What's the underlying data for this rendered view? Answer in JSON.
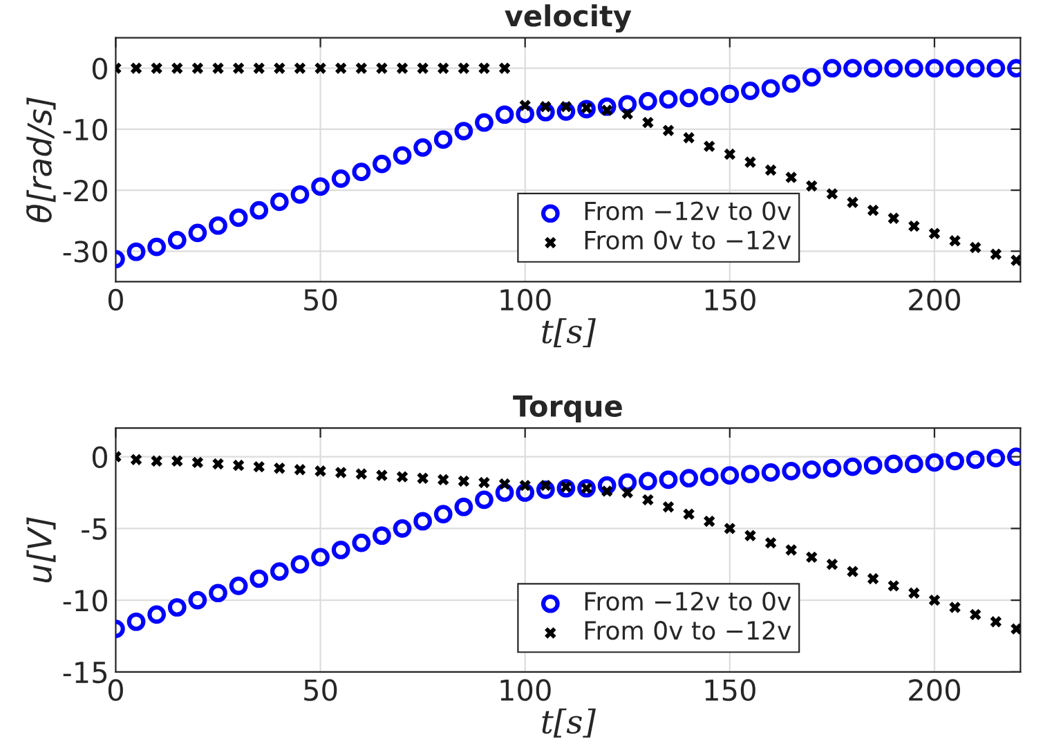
{
  "chart_data": [
    {
      "type": "scatter",
      "title": "velocity",
      "xlabel": "t[s]",
      "ylabel": "θ̇[rad/s]",
      "xlim": [
        0,
        221
      ],
      "ylim": [
        -35,
        5
      ],
      "xticks": [
        0,
        50,
        100,
        150,
        200
      ],
      "yticks": [
        -30,
        -20,
        -10,
        0
      ],
      "grid": true,
      "legend": "bottom",
      "x": [
        0,
        5,
        10,
        15,
        20,
        25,
        30,
        35,
        40,
        45,
        50,
        55,
        60,
        65,
        70,
        75,
        80,
        85,
        90,
        95,
        100,
        105,
        110,
        115,
        120,
        125,
        130,
        135,
        140,
        145,
        150,
        155,
        160,
        165,
        170,
        175,
        180,
        185,
        190,
        195,
        200,
        205,
        210,
        215,
        220
      ],
      "series": [
        {
          "name": "From −12v to 0v",
          "color": "#0000ff",
          "marker": "circle",
          "values": [
            -31.3,
            -30.1,
            -29.3,
            -28.2,
            -27.0,
            -25.8,
            -24.5,
            -23.3,
            -21.9,
            -20.7,
            -19.4,
            -18.1,
            -17.0,
            -15.7,
            -14.3,
            -13.0,
            -11.7,
            -10.3,
            -8.9,
            -7.6,
            -7.5,
            -7.2,
            -7.1,
            -6.7,
            -6.3,
            -5.9,
            -5.4,
            -5.1,
            -4.9,
            -4.6,
            -4.2,
            -3.7,
            -3.3,
            -2.5,
            -1.5,
            0,
            0,
            0,
            0,
            0,
            0,
            0,
            0,
            0,
            0
          ]
        },
        {
          "name": "From 0v to −12v",
          "color": "#000000",
          "marker": "cross",
          "values": [
            0,
            0,
            0,
            0,
            0,
            0,
            0,
            0,
            0,
            0,
            0,
            0,
            0,
            0,
            0,
            0,
            0,
            0,
            0,
            0,
            -6.1,
            -6.3,
            -6.3,
            -6.5,
            -6.9,
            -7.5,
            -8.9,
            -10.2,
            -11.4,
            -12.8,
            -14.1,
            -15.4,
            -16.7,
            -17.9,
            -19.3,
            -20.6,
            -22.0,
            -23.3,
            -24.6,
            -25.9,
            -27.1,
            -28.3,
            -29.4,
            -30.5,
            -31.5
          ]
        }
      ]
    },
    {
      "type": "scatter",
      "title": "Torque",
      "xlabel": "t[s]",
      "ylabel": "u[V]",
      "xlim": [
        0,
        221
      ],
      "ylim": [
        -15,
        2
      ],
      "xticks": [
        0,
        50,
        100,
        150,
        200
      ],
      "yticks": [
        -15,
        -10,
        -5,
        0
      ],
      "grid": true,
      "legend": "bottom",
      "x": [
        0,
        5,
        10,
        15,
        20,
        25,
        30,
        35,
        40,
        45,
        50,
        55,
        60,
        65,
        70,
        75,
        80,
        85,
        90,
        95,
        100,
        105,
        110,
        115,
        120,
        125,
        130,
        135,
        140,
        145,
        150,
        155,
        160,
        165,
        170,
        175,
        180,
        185,
        190,
        195,
        200,
        205,
        210,
        215,
        220
      ],
      "series": [
        {
          "name": "From −12v to 0v",
          "color": "#0000ff",
          "marker": "circle",
          "values": [
            -12.0,
            -11.5,
            -11.0,
            -10.5,
            -10.0,
            -9.5,
            -9.0,
            -8.5,
            -8.0,
            -7.5,
            -7.0,
            -6.5,
            -6.0,
            -5.5,
            -5.0,
            -4.5,
            -4.0,
            -3.5,
            -3.0,
            -2.5,
            -2.5,
            -2.3,
            -2.2,
            -2.2,
            -2.0,
            -1.8,
            -1.7,
            -1.6,
            -1.5,
            -1.4,
            -1.3,
            -1.2,
            -1.1,
            -1.0,
            -0.9,
            -0.8,
            -0.7,
            -0.6,
            -0.5,
            -0.5,
            -0.4,
            -0.3,
            -0.2,
            -0.1,
            0
          ]
        },
        {
          "name": "From 0v to −12v",
          "color": "#000000",
          "marker": "cross",
          "values": [
            0,
            -0.2,
            -0.3,
            -0.3,
            -0.4,
            -0.5,
            -0.6,
            -0.7,
            -0.8,
            -0.9,
            -1.0,
            -1.1,
            -1.2,
            -1.3,
            -1.4,
            -1.5,
            -1.6,
            -1.7,
            -1.8,
            -1.9,
            -2.0,
            -2.0,
            -2.1,
            -2.2,
            -2.4,
            -2.5,
            -3.0,
            -3.5,
            -4.0,
            -4.5,
            -5.0,
            -5.5,
            -6.0,
            -6.5,
            -7.0,
            -7.5,
            -8.0,
            -8.5,
            -9.0,
            -9.5,
            -10.0,
            -10.5,
            -11.0,
            -11.5,
            -12.0
          ]
        }
      ]
    }
  ]
}
